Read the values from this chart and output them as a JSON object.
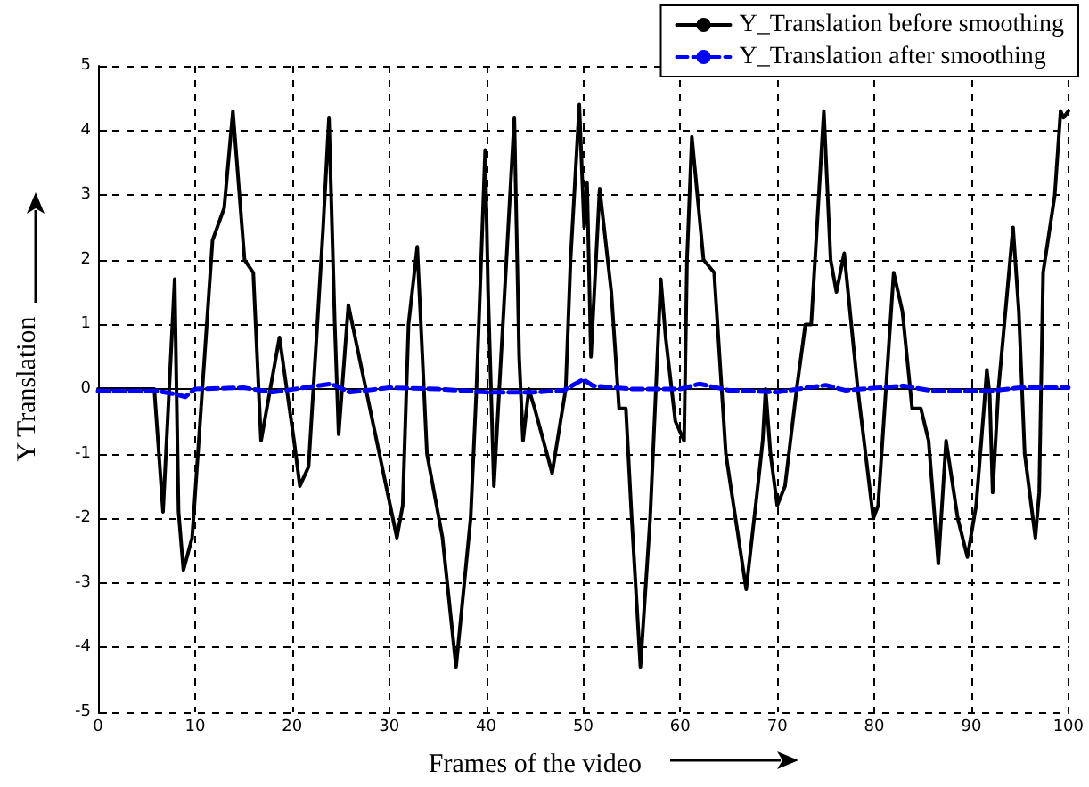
{
  "chart_data": {
    "type": "line",
    "xlabel": "Frames of the video",
    "ylabel": "Y Translation",
    "xlim": [
      0,
      100
    ],
    "xticks": [
      0,
      10,
      20,
      30,
      40,
      50,
      60,
      70,
      80,
      90,
      100
    ],
    "ylim": [
      -5,
      5
    ],
    "yticks": [
      -5,
      -4,
      -3,
      -2,
      -1,
      0,
      1,
      2,
      3,
      4,
      5
    ],
    "grid": true,
    "legend": "top right",
    "marker": "none",
    "series": [
      {
        "name": "Y_Translation before smoothing",
        "color": "#000000",
        "line_style": "solid",
        "x": [
          0,
          5.8,
          6.7,
          7.9,
          8.3,
          8.8,
          9.7,
          11.8,
          13,
          13.9,
          15.1,
          16,
          16.8,
          18.7,
          20.2,
          20.8,
          21.7,
          22.6,
          23.2,
          23.8,
          24.4,
          24.8,
          25.8,
          30.8,
          31.4,
          32,
          32.9,
          33.9,
          35.5,
          36.9,
          38.4,
          39,
          39.9,
          40.2,
          40.8,
          42.9,
          43.4,
          43.8,
          44.4,
          45,
          46.8,
          48.2,
          48.7,
          49.6,
          50.1,
          50.4,
          50.8,
          51.7,
          52.9,
          53.7,
          54.4,
          55,
          55.9,
          56.9,
          58,
          58.5,
          59.5,
          60.4,
          60.7,
          61.2,
          62.4,
          63.5,
          64.7,
          65.9,
          66.8,
          68,
          68.5,
          68.8,
          69.3,
          70,
          70.8,
          72,
          72.9,
          73.5,
          74.8,
          75.5,
          76.1,
          76.9,
          78.3,
          79.9,
          80.4,
          82,
          82.9,
          83.9,
          84.8,
          85.6,
          86.6,
          87.4,
          88.6,
          89.6,
          90.5,
          91.3,
          91.6,
          91.9,
          92.2,
          92.8,
          94.3,
          94.9,
          95.5,
          96.6,
          97,
          97.4,
          98.6,
          99.2,
          99.5,
          100
        ],
        "values": [
          0,
          0,
          -1.9,
          1.7,
          -1.9,
          -2.8,
          -2.3,
          2.3,
          2.8,
          4.3,
          2,
          1.8,
          -0.8,
          0.8,
          -0.8,
          -1.5,
          -1.2,
          1,
          2.5,
          4.2,
          1,
          -0.7,
          1.3,
          -2.3,
          -1.8,
          1,
          2.2,
          -1,
          -2.3,
          -4.3,
          -2,
          0,
          3.7,
          1.5,
          -1.5,
          4.2,
          0.5,
          -0.8,
          0,
          -0.3,
          -1.3,
          0,
          2,
          4.4,
          2.5,
          3.2,
          0.5,
          3.1,
          1.5,
          -0.3,
          -0.3,
          -2,
          -4.3,
          -2,
          1.7,
          0.8,
          -0.5,
          -0.8,
          2,
          3.9,
          2,
          1.8,
          -1,
          -2.2,
          -3.1,
          -1.5,
          -0.8,
          0,
          -1,
          -1.8,
          -1.5,
          0,
          1,
          1,
          4.3,
          2,
          1.5,
          2.1,
          0,
          -2,
          -1.8,
          1.8,
          1.2,
          -0.3,
          -0.3,
          -0.8,
          -2.7,
          -0.8,
          -2,
          -2.6,
          -1.8,
          -0.3,
          0.3,
          -0.1,
          -1.6,
          0,
          2.5,
          1.2,
          -1,
          -2.3,
          -1.6,
          1.8,
          3,
          4.3,
          4.2,
          4.3
        ]
      },
      {
        "name": "Y_Translation after smoothing",
        "color": "#0000ff",
        "line_style": "dashed",
        "x": [
          0,
          6,
          8,
          9,
          10,
          15,
          18,
          24,
          26,
          30,
          35,
          40,
          45,
          48,
          50,
          51,
          55,
          60,
          62,
          65,
          70,
          73,
          75,
          77,
          83,
          86,
          92,
          95,
          100
        ],
        "values": [
          -0.03,
          -0.03,
          -0.08,
          -0.12,
          0,
          0.02,
          -0.05,
          0.08,
          -0.05,
          0.02,
          0,
          -0.05,
          -0.05,
          -0.02,
          0.15,
          0.05,
          0,
          0,
          0.08,
          -0.02,
          -0.05,
          0.02,
          0.06,
          -0.02,
          0.05,
          -0.03,
          -0.03,
          0.02,
          0.02
        ]
      }
    ]
  }
}
